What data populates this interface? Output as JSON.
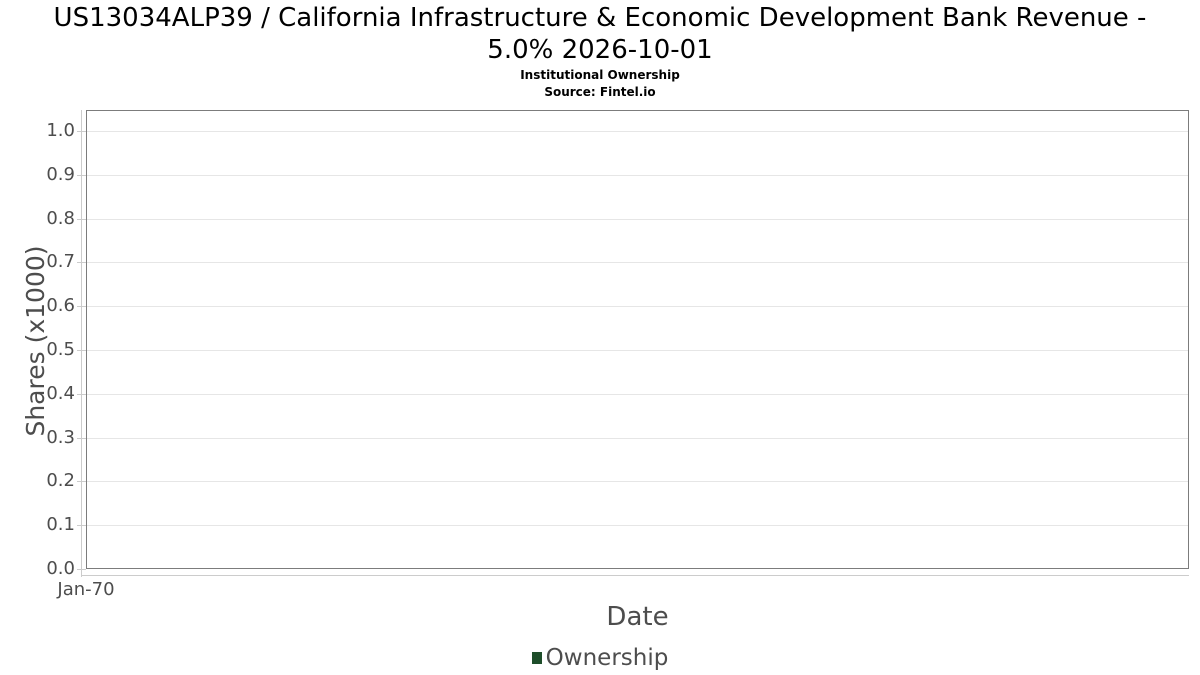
{
  "header": {
    "title_lines": [
      "US13034ALP39 / California Infrastructure & Economic Development Bank Revenue -",
      "5.0% 2026-10-01"
    ],
    "subtitle": "Institutional Ownership",
    "source": "Source: Fintel.io"
  },
  "chart_data": {
    "type": "line",
    "title": "US13034ALP39 / California Infrastructure & Economic Development Bank Revenue - 5.0% 2026-10-01",
    "subtitle": "Institutional Ownership",
    "source": "Source: Fintel.io",
    "xlabel": "Date",
    "ylabel": "Shares (x1000)",
    "x_ticks": [
      "Jan-70"
    ],
    "y_ticks": [
      0.0,
      0.1,
      0.2,
      0.3,
      0.4,
      0.5,
      0.6,
      0.7,
      0.8,
      0.9,
      1.0
    ],
    "ylim": [
      0,
      1.05
    ],
    "grid": true,
    "legend_position": "bottom",
    "series": [
      {
        "name": "Ownership",
        "color": "#1e4e2a",
        "x": [],
        "values": []
      }
    ]
  },
  "legend": {
    "items": [
      {
        "label": "Ownership",
        "color": "#1e4e2a"
      }
    ]
  },
  "colors": {
    "plot_border": "#7c7c7c",
    "gridline": "#e6e6e6",
    "axis_line": "#cccccc",
    "tick_label": "#4d4d4d",
    "title_text": "#000000",
    "legend_swatch": "#1e4e2a"
  }
}
